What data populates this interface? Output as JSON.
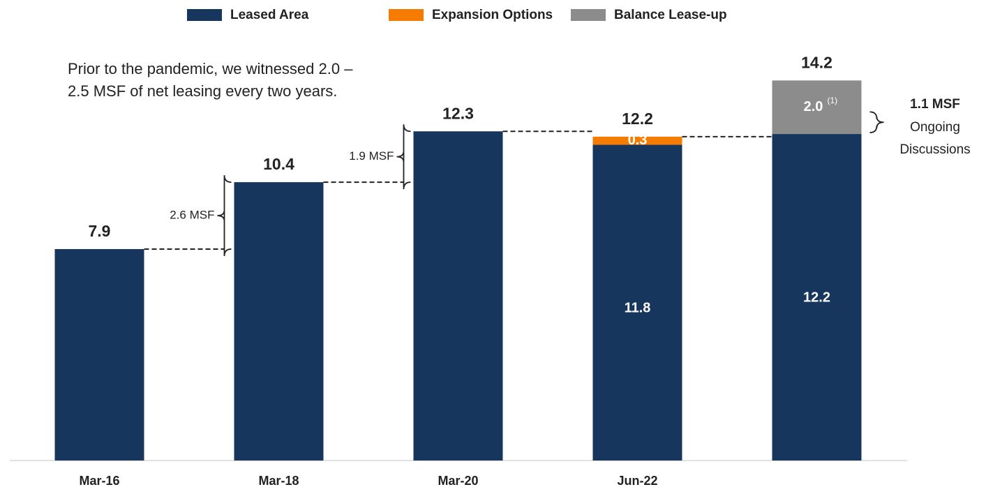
{
  "chart_data": {
    "type": "stacked_bar",
    "categories": [
      "Mar-16",
      "Mar-18",
      "Mar-20",
      "Jun-22",
      null
    ],
    "series": [
      {
        "name": "Leased Area",
        "color": "#17365d",
        "values": [
          7.9,
          10.4,
          12.3,
          11.8,
          12.2
        ],
        "value_labels": [
          null,
          null,
          null,
          "11.8",
          "12.2"
        ]
      },
      {
        "name": "Expansion Options",
        "color": "#f57c00",
        "values": [
          null,
          null,
          null,
          0.3,
          null
        ],
        "value_labels": [
          null,
          null,
          null,
          "0.3",
          null
        ]
      },
      {
        "name": "Balance Lease-up",
        "color": "#8c8c8c",
        "values": [
          null,
          null,
          null,
          null,
          2.0
        ],
        "value_labels": [
          null,
          null,
          null,
          null,
          "2.0"
        ]
      }
    ],
    "totals": [
      7.9,
      10.4,
      12.3,
      12.2,
      14.2
    ],
    "ylim": [
      0,
      14.6
    ],
    "footnote_marker": "(1)",
    "note": [
      "Prior to the pandemic, we witnessed 2.0 –",
      "2.5 MSF of net leasing every two years."
    ],
    "brackets": [
      {
        "label": "2.6 MSF"
      },
      {
        "label": "1.9 MSF"
      }
    ],
    "side_note": {
      "title": "1.1 MSF",
      "lines": [
        "Ongoing",
        "Discussions"
      ]
    }
  }
}
